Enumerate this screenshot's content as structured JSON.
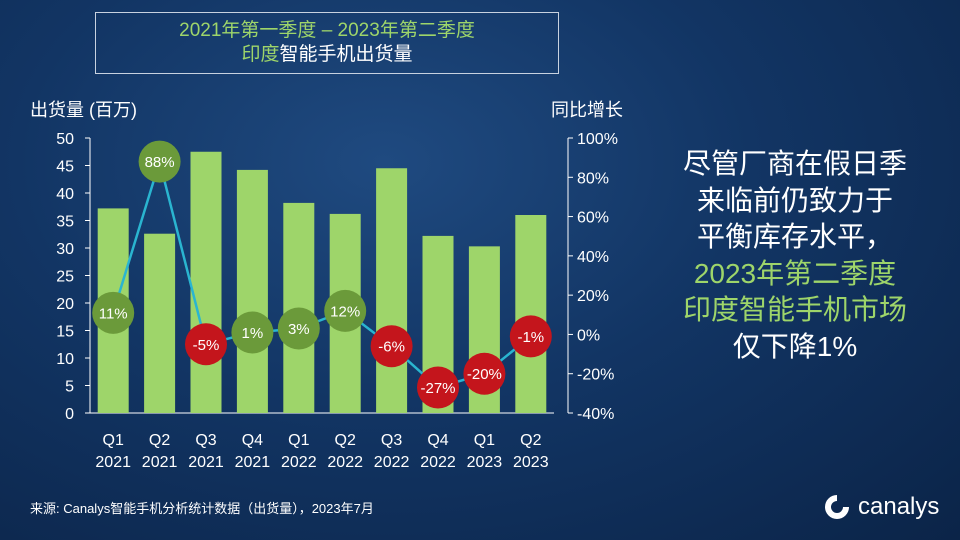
{
  "title": {
    "line1": "2021年第一季度 – 2023年第二季度",
    "line2_highlight": "印度",
    "line2_rest": "智能手机出货量"
  },
  "side_text": {
    "line1": "尽管厂商在假日季",
    "line2": "来临前仍致力于",
    "line3": "平衡库存水平，",
    "line4": "2023年第二季度",
    "line5": "印度智能手机市场",
    "line6": "仅下降1%"
  },
  "footer": {
    "source": "来源: Canalys智能手机分析统计数据（出货量），2023年7月",
    "brand": "canalys"
  },
  "colors": {
    "bar": "#9ed56a",
    "line": "#2ab5d0",
    "positive_bubble": "#6b9a3a",
    "negative_bubble": "#c4151c",
    "axis_text": "#ffffff"
  },
  "chart_data": {
    "type": "bar",
    "categories": [
      "Q1 2021",
      "Q2 2021",
      "Q3 2021",
      "Q4 2021",
      "Q1 2022",
      "Q2 2022",
      "Q3 2022",
      "Q4 2022",
      "Q1 2023",
      "Q2 2023"
    ],
    "x_quarters": [
      "Q1",
      "Q2",
      "Q3",
      "Q4",
      "Q1",
      "Q2",
      "Q3",
      "Q4",
      "Q1",
      "Q2"
    ],
    "x_years": [
      "2021",
      "2021",
      "2021",
      "2021",
      "2022",
      "2022",
      "2022",
      "2022",
      "2023",
      "2023"
    ],
    "series": [
      {
        "name": "出货量 (百万)",
        "type": "bar",
        "axis": "left",
        "values": [
          37.2,
          32.6,
          47.5,
          44.2,
          38.2,
          36.2,
          44.5,
          32.2,
          30.3,
          36.0
        ]
      },
      {
        "name": "同比增长",
        "type": "line",
        "axis": "right",
        "values": [
          11,
          88,
          -5,
          1,
          3,
          12,
          -6,
          -27,
          -20,
          -1
        ],
        "labels": [
          "11%",
          "88%",
          "-5%",
          "1%",
          "3%",
          "12%",
          "-6%",
          "-27%",
          "-20%",
          "-1%"
        ]
      }
    ],
    "ylabel_left": "出货量 (百万)",
    "ylabel_right": "同比增长",
    "ylim_left": [
      0,
      50
    ],
    "ylim_right": [
      -40,
      100
    ],
    "yticks_left": [
      "0",
      "5",
      "10",
      "15",
      "20",
      "25",
      "30",
      "35",
      "40",
      "45",
      "50"
    ],
    "yticks_right": [
      "-40%",
      "-20%",
      "0%",
      "20%",
      "40%",
      "60%",
      "80%",
      "100%"
    ]
  }
}
